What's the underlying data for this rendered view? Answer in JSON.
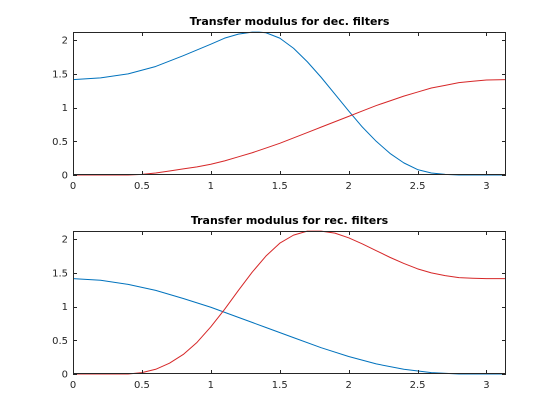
{
  "chart_data": [
    {
      "type": "line",
      "title": "Transfer modulus for dec. filters",
      "xlabel": "",
      "ylabel": "",
      "xlim": [
        0,
        3.1416
      ],
      "ylim": [
        0,
        2.1213
      ],
      "xticks": [
        0,
        0.5,
        1,
        1.5,
        2,
        2.5,
        3
      ],
      "yticks": [
        0,
        0.5,
        1,
        1.5,
        2
      ],
      "xtick_labels": [
        "0",
        "0.5",
        "1",
        "1.5",
        "2",
        "2.5",
        "3"
      ],
      "ytick_labels": [
        "0",
        "0.5",
        "1",
        "1.5",
        "2"
      ],
      "grid": false,
      "series": [
        {
          "color": "#0072BD",
          "x": [
            0,
            0.2,
            0.4,
            0.6,
            0.8,
            1.0,
            1.1,
            1.2,
            1.3,
            1.35,
            1.4,
            1.5,
            1.6,
            1.7,
            1.8,
            1.9,
            2.0,
            2.1,
            2.2,
            2.3,
            2.4,
            2.5,
            2.6,
            2.7,
            2.8,
            3.0,
            3.1416
          ],
          "y": [
            1.414,
            1.44,
            1.5,
            1.61,
            1.77,
            1.94,
            2.03,
            2.09,
            2.12,
            2.12,
            2.11,
            2.03,
            1.88,
            1.68,
            1.45,
            1.2,
            0.95,
            0.71,
            0.5,
            0.32,
            0.18,
            0.08,
            0.03,
            0.01,
            0.0,
            0.0,
            0.0
          ]
        },
        {
          "color": "#D62728",
          "x": [
            0,
            0.4,
            0.5,
            0.6,
            0.7,
            0.8,
            0.9,
            1.0,
            1.1,
            1.2,
            1.3,
            1.4,
            1.5,
            1.6,
            1.7,
            1.8,
            1.9,
            2.0,
            2.1,
            2.2,
            2.3,
            2.4,
            2.5,
            2.6,
            2.7,
            2.8,
            2.9,
            3.0,
            3.1416
          ],
          "y": [
            0,
            0,
            0.01,
            0.03,
            0.06,
            0.09,
            0.12,
            0.16,
            0.21,
            0.27,
            0.33,
            0.4,
            0.47,
            0.55,
            0.63,
            0.71,
            0.79,
            0.87,
            0.95,
            1.03,
            1.1,
            1.17,
            1.23,
            1.29,
            1.33,
            1.37,
            1.39,
            1.41,
            1.414
          ]
        }
      ]
    },
    {
      "type": "line",
      "title": "Transfer modulus for rec. filters",
      "xlabel": "",
      "ylabel": "",
      "xlim": [
        0,
        3.1416
      ],
      "ylim": [
        0,
        2.1213
      ],
      "xticks": [
        0,
        0.5,
        1,
        1.5,
        2,
        2.5,
        3
      ],
      "yticks": [
        0,
        0.5,
        1,
        1.5,
        2
      ],
      "xtick_labels": [
        "0",
        "0.5",
        "1",
        "1.5",
        "2",
        "2.5",
        "3"
      ],
      "ytick_labels": [
        "0",
        "0.5",
        "1",
        "1.5",
        "2"
      ],
      "grid": false,
      "series": [
        {
          "color": "#0072BD",
          "x": [
            0,
            0.2,
            0.4,
            0.6,
            0.8,
            1.0,
            1.2,
            1.4,
            1.6,
            1.8,
            2.0,
            2.2,
            2.4,
            2.6,
            2.8,
            3.0,
            3.1416
          ],
          "y": [
            1.414,
            1.39,
            1.33,
            1.24,
            1.12,
            0.99,
            0.84,
            0.69,
            0.54,
            0.39,
            0.26,
            0.15,
            0.07,
            0.02,
            0.0,
            0.0,
            0.0
          ]
        },
        {
          "color": "#D62728",
          "x": [
            0,
            0.4,
            0.5,
            0.6,
            0.7,
            0.8,
            0.9,
            1.0,
            1.1,
            1.2,
            1.3,
            1.4,
            1.5,
            1.6,
            1.7,
            1.8,
            1.9,
            2.0,
            2.1,
            2.2,
            2.3,
            2.4,
            2.5,
            2.6,
            2.7,
            2.8,
            2.9,
            3.0,
            3.1416
          ],
          "y": [
            0,
            0,
            0.02,
            0.07,
            0.16,
            0.29,
            0.47,
            0.7,
            0.96,
            1.24,
            1.51,
            1.75,
            1.94,
            2.06,
            2.12,
            2.12,
            2.09,
            2.02,
            1.93,
            1.83,
            1.73,
            1.64,
            1.56,
            1.5,
            1.46,
            1.43,
            1.42,
            1.414,
            1.414
          ]
        }
      ]
    }
  ]
}
